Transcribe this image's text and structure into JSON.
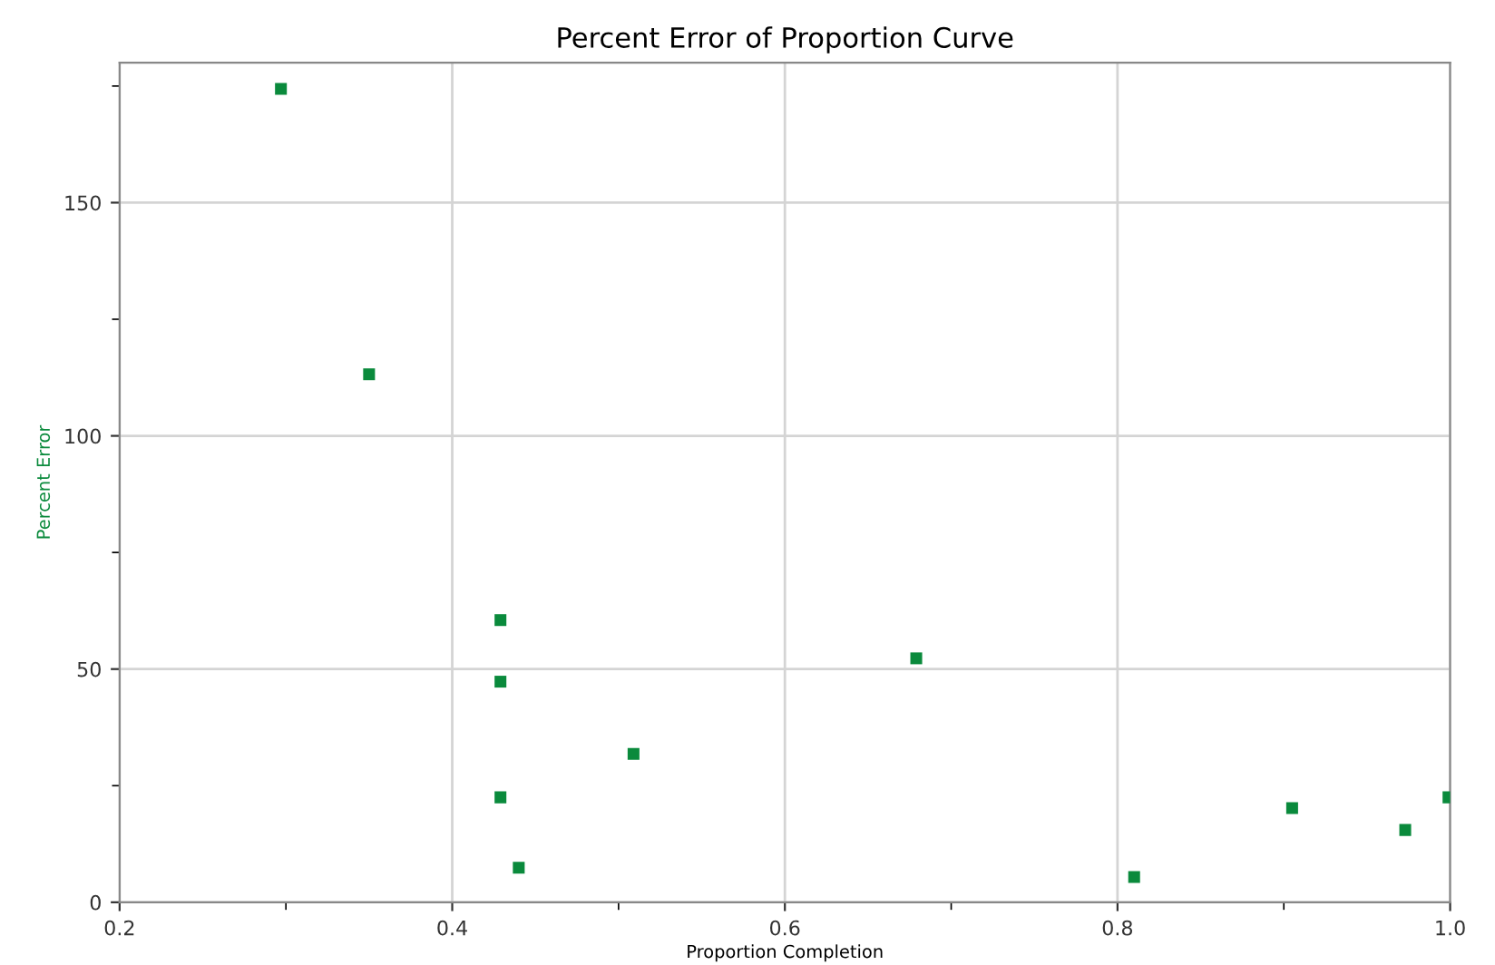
{
  "chart_data": {
    "type": "scatter",
    "title": "Percent Error of Proportion Curve",
    "xlabel": "Proportion Completion",
    "ylabel": "Percent Error",
    "x": [
      0.297,
      0.35,
      0.429,
      0.429,
      0.429,
      0.44,
      0.509,
      0.679,
      0.81,
      0.905,
      0.973,
      0.999
    ],
    "values": [
      174.4,
      113.2,
      60.5,
      47.3,
      22.5,
      7.4,
      31.8,
      52.3,
      5.4,
      20.2,
      15.5,
      22.5
    ],
    "color": "#0a8a3c",
    "marker": "square",
    "xlim": [
      0.2,
      1.0
    ],
    "ylim": [
      0,
      180
    ],
    "xticks": [
      0.2,
      {
        "value": 0.3,
        "label": null
      },
      0.4,
      {
        "value": 0.5,
        "label": null
      },
      0.6,
      {
        "value": 0.7,
        "label": null
      },
      0.8,
      {
        "value": 0.9,
        "label": null
      },
      {
        "value": 1.0,
        "label": "1.0"
      }
    ],
    "yticks": [
      0,
      {
        "value": 25,
        "label": null
      },
      50,
      {
        "value": 75,
        "label": null
      },
      100,
      {
        "value": 125,
        "label": null
      },
      150,
      {
        "value": 175,
        "label": null
      }
    ],
    "grid": true
  }
}
